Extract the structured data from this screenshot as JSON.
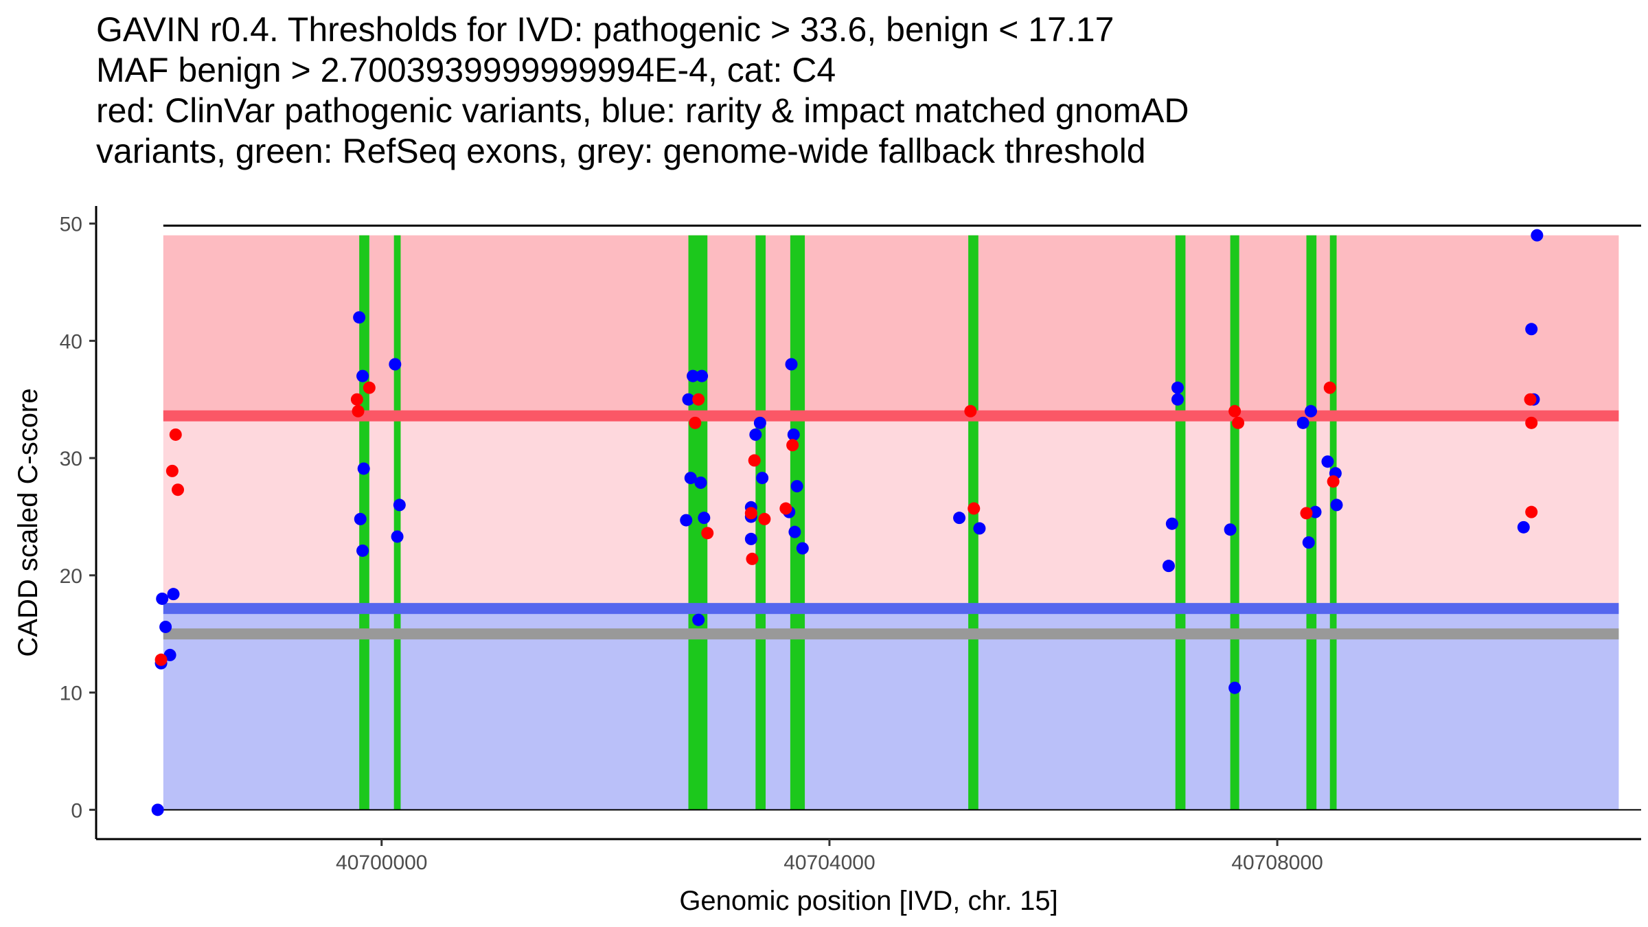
{
  "chart_data": {
    "type": "scatter",
    "title_lines": [
      "GAVIN r0.4. Thresholds for IVD: pathogenic > 33.6, benign < 17.17",
      "MAF benign > 2.7003939999999994E-4, cat: C4",
      "red: ClinVar pathogenic variants, blue: rarity & impact matched gnomAD",
      "variants, green: RefSeq exons, grey: genome-wide fallback threshold"
    ],
    "xlabel": "Genomic position [IVD, chr. 15]",
    "ylabel": "CADD scaled C-score",
    "xlim": [
      40697450,
      40711250
    ],
    "ylim": [
      -2.5,
      51.5
    ],
    "x_ticks": [
      {
        "value": 40700000,
        "label": "40700000"
      },
      {
        "value": 40704000,
        "label": "40704000"
      },
      {
        "value": 40708000,
        "label": "40708000"
      }
    ],
    "y_ticks": [
      {
        "value": 0,
        "label": "0"
      },
      {
        "value": 10,
        "label": "10"
      },
      {
        "value": 20,
        "label": "20"
      },
      {
        "value": 30,
        "label": "30"
      },
      {
        "value": 40,
        "label": "40"
      },
      {
        "value": 50,
        "label": "50"
      }
    ],
    "colors": {
      "pathogenic_region": "#fdbbc1",
      "vus_region": "#fed8dd",
      "benign_region": "#bac0f9",
      "pathogenic_line": "#fb5766",
      "benign_line": "#5566ee",
      "fallback_line": "#999999",
      "exon": "#1cc81c",
      "clinvar_point": "#ff0000",
      "gnomad_point": "#0000ff",
      "axis": "#000000"
    },
    "thresholds": {
      "pathogenic": 33.6,
      "benign": 17.17,
      "fallback": 15.0
    },
    "region_x_range": [
      40698050,
      40711050
    ],
    "region_top": 49,
    "exons": [
      [
        40699800,
        40699890
      ],
      [
        40700110,
        40700170
      ],
      [
        40702740,
        40702910
      ],
      [
        40703340,
        40703430
      ],
      [
        40703650,
        40703780
      ],
      [
        40705240,
        40705330
      ],
      [
        40707090,
        40707180
      ],
      [
        40707580,
        40707660
      ],
      [
        40708260,
        40708350
      ],
      [
        40708470,
        40708530
      ]
    ],
    "series": [
      {
        "name": "ClinVar pathogenic variants",
        "color": "#ff0000",
        "points": [
          {
            "x": 40698030,
            "y": 12.8
          },
          {
            "x": 40698130,
            "y": 28.9
          },
          {
            "x": 40698160,
            "y": 32.0
          },
          {
            "x": 40698180,
            "y": 27.3
          },
          {
            "x": 40699780,
            "y": 35.0
          },
          {
            "x": 40699790,
            "y": 34.0
          },
          {
            "x": 40699890,
            "y": 36.0
          },
          {
            "x": 40702830,
            "y": 35.0
          },
          {
            "x": 40702800,
            "y": 33.0
          },
          {
            "x": 40702910,
            "y": 23.6
          },
          {
            "x": 40703330,
            "y": 29.8
          },
          {
            "x": 40703300,
            "y": 25.3
          },
          {
            "x": 40703310,
            "y": 21.4
          },
          {
            "x": 40703420,
            "y": 24.8
          },
          {
            "x": 40703610,
            "y": 25.7
          },
          {
            "x": 40703670,
            "y": 31.1
          },
          {
            "x": 40705260,
            "y": 34.0
          },
          {
            "x": 40705290,
            "y": 25.7
          },
          {
            "x": 40707620,
            "y": 34.0
          },
          {
            "x": 40707650,
            "y": 33.0
          },
          {
            "x": 40708260,
            "y": 25.3
          },
          {
            "x": 40708470,
            "y": 36.0
          },
          {
            "x": 40708500,
            "y": 28.0
          },
          {
            "x": 40710260,
            "y": 35.0
          },
          {
            "x": 40710270,
            "y": 33.0
          },
          {
            "x": 40710270,
            "y": 25.4
          }
        ]
      },
      {
        "name": "rarity & impact matched gnomAD variants",
        "color": "#0000ff",
        "points": [
          {
            "x": 40698000,
            "y": 0.0
          },
          {
            "x": 40698030,
            "y": 12.5
          },
          {
            "x": 40698040,
            "y": 18.0
          },
          {
            "x": 40698070,
            "y": 15.6
          },
          {
            "x": 40698110,
            "y": 13.2
          },
          {
            "x": 40698140,
            "y": 18.4
          },
          {
            "x": 40699800,
            "y": 42.0
          },
          {
            "x": 40699830,
            "y": 37.0
          },
          {
            "x": 40699840,
            "y": 29.1
          },
          {
            "x": 40699810,
            "y": 24.8
          },
          {
            "x": 40699830,
            "y": 22.1
          },
          {
            "x": 40700120,
            "y": 38.0
          },
          {
            "x": 40700140,
            "y": 23.3
          },
          {
            "x": 40700160,
            "y": 26.0
          },
          {
            "x": 40702740,
            "y": 35.0
          },
          {
            "x": 40702780,
            "y": 37.0
          },
          {
            "x": 40702860,
            "y": 37.0
          },
          {
            "x": 40702760,
            "y": 28.3
          },
          {
            "x": 40702850,
            "y": 27.9
          },
          {
            "x": 40702720,
            "y": 24.7
          },
          {
            "x": 40702880,
            "y": 24.9
          },
          {
            "x": 40702830,
            "y": 16.2
          },
          {
            "x": 40703300,
            "y": 25.8
          },
          {
            "x": 40703300,
            "y": 25.0
          },
          {
            "x": 40703300,
            "y": 23.1
          },
          {
            "x": 40703340,
            "y": 32.0
          },
          {
            "x": 40703380,
            "y": 33.0
          },
          {
            "x": 40703400,
            "y": 28.3
          },
          {
            "x": 40703640,
            "y": 25.4
          },
          {
            "x": 40703660,
            "y": 38.0
          },
          {
            "x": 40703680,
            "y": 32.0
          },
          {
            "x": 40703710,
            "y": 27.6
          },
          {
            "x": 40703690,
            "y": 23.7
          },
          {
            "x": 40703760,
            "y": 22.3
          },
          {
            "x": 40705160,
            "y": 24.9
          },
          {
            "x": 40705340,
            "y": 24.0
          },
          {
            "x": 40707030,
            "y": 20.8
          },
          {
            "x": 40707060,
            "y": 24.4
          },
          {
            "x": 40707110,
            "y": 36.0
          },
          {
            "x": 40707110,
            "y": 35.0
          },
          {
            "x": 40707580,
            "y": 23.9
          },
          {
            "x": 40707620,
            "y": 10.4
          },
          {
            "x": 40708230,
            "y": 33.0
          },
          {
            "x": 40708300,
            "y": 34.0
          },
          {
            "x": 40708280,
            "y": 22.8
          },
          {
            "x": 40708340,
            "y": 25.4
          },
          {
            "x": 40708450,
            "y": 29.7
          },
          {
            "x": 40708520,
            "y": 28.7
          },
          {
            "x": 40708530,
            "y": 26.0
          },
          {
            "x": 40710200,
            "y": 24.1
          },
          {
            "x": 40710270,
            "y": 41.0
          },
          {
            "x": 40710290,
            "y": 35.0
          },
          {
            "x": 40710320,
            "y": 49.0
          }
        ]
      }
    ]
  }
}
